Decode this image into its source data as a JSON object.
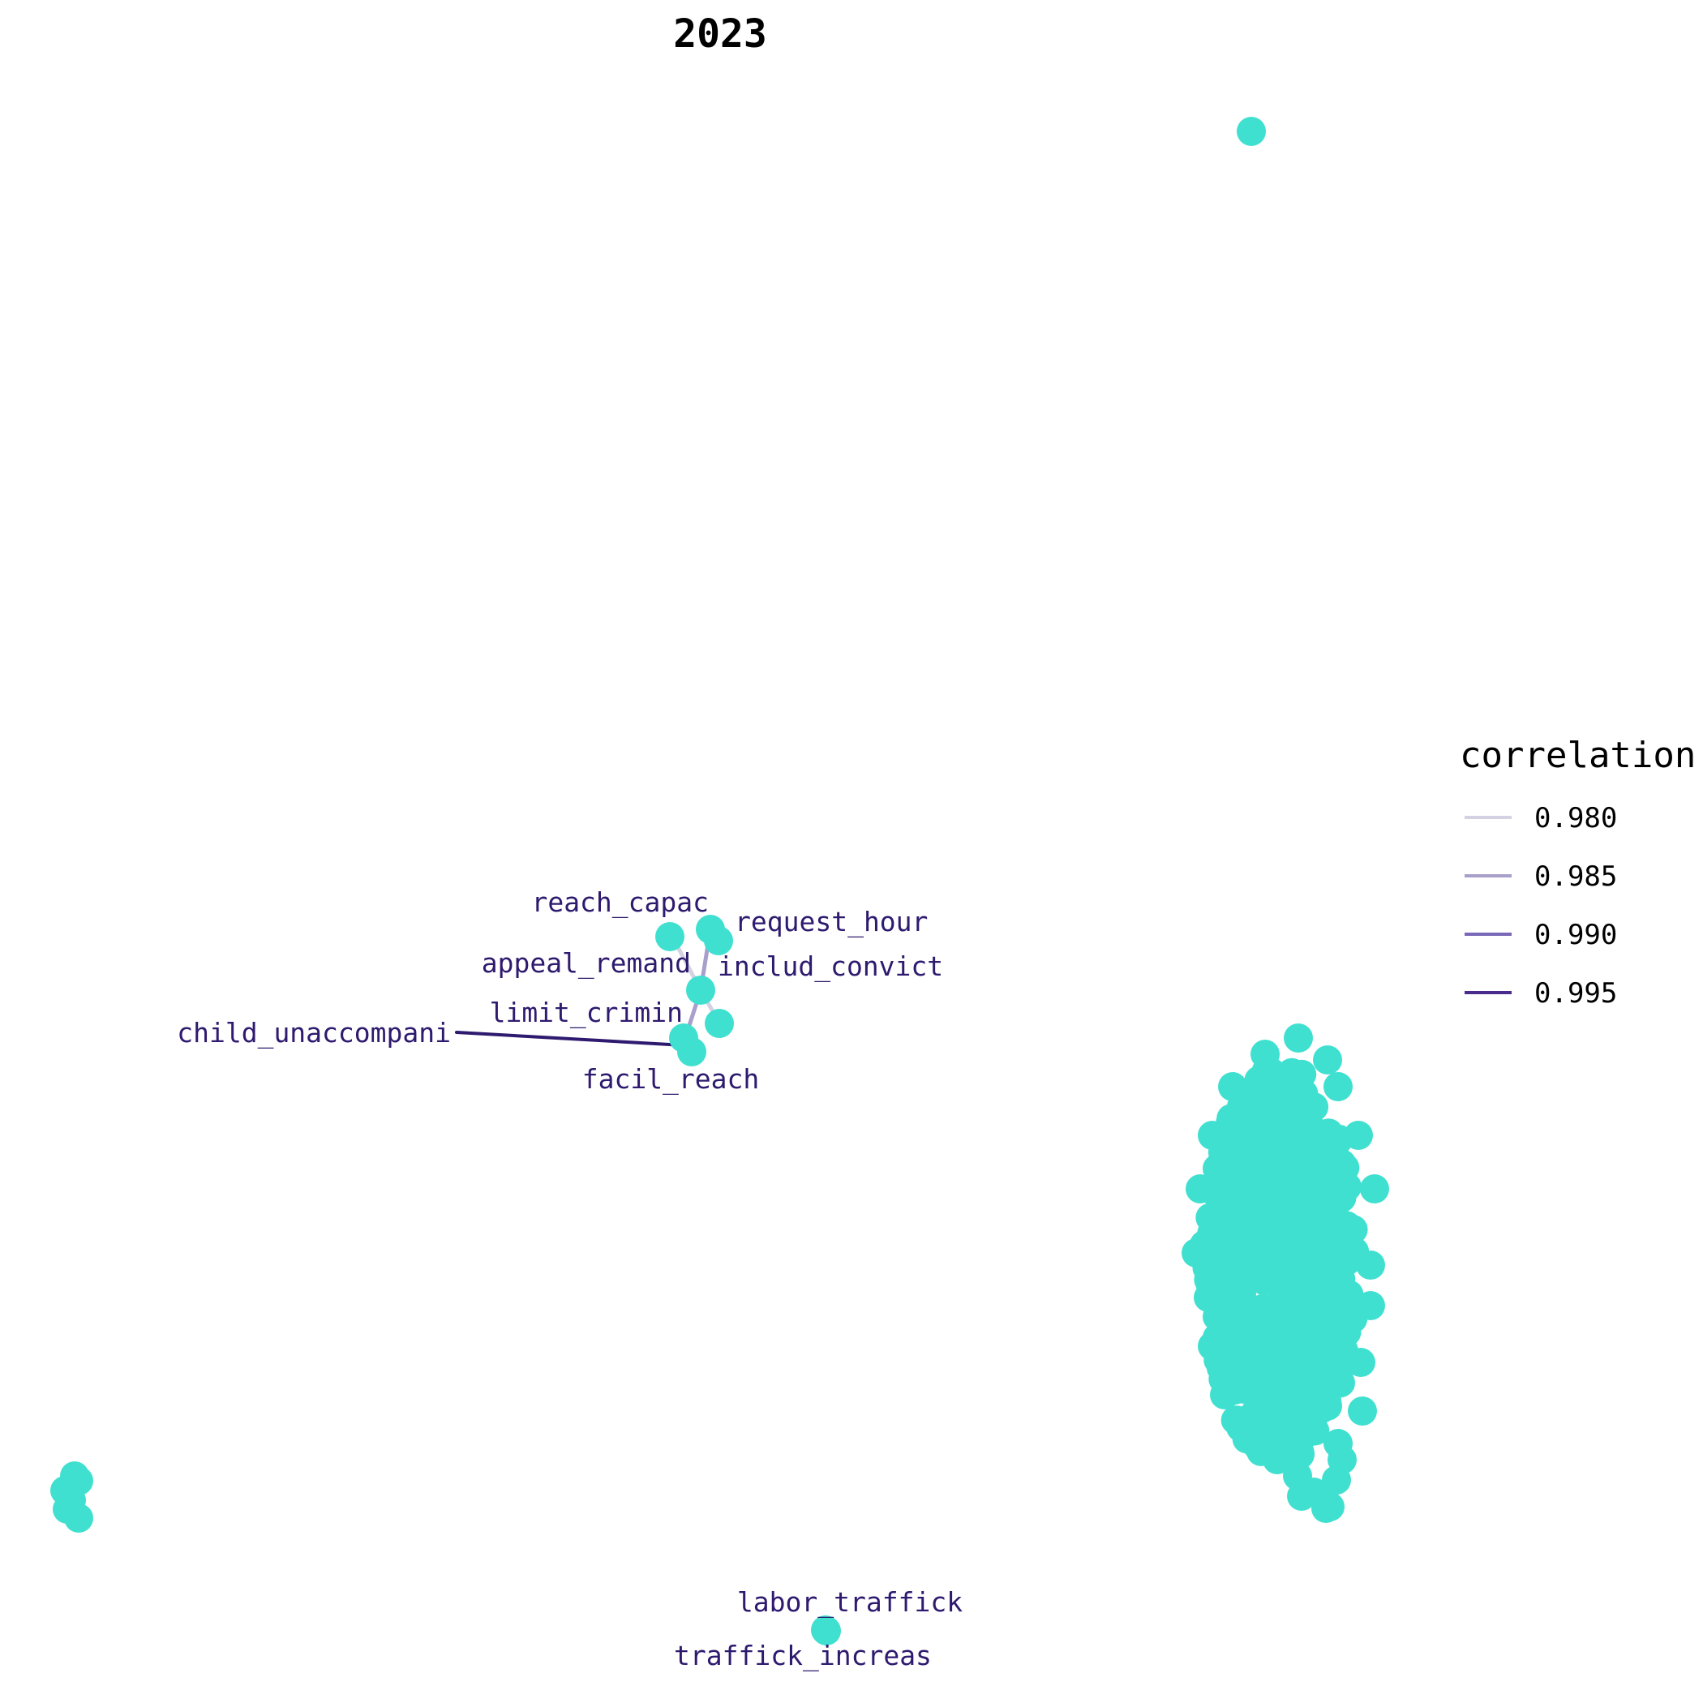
{
  "title": "2023",
  "colors": {
    "node": "#40E0D0",
    "label": "#2E1A6E",
    "background": "#FFFFFF"
  },
  "legend": {
    "title": "correlation",
    "entries": [
      {
        "label": "0.980",
        "value": 0.98,
        "color": "#D4D1E3"
      },
      {
        "label": "0.985",
        "value": 0.985,
        "color": "#A99FCB"
      },
      {
        "label": "0.990",
        "value": 0.99,
        "color": "#7A68B8"
      },
      {
        "label": "0.995",
        "value": 0.995,
        "color": "#4A2C8C"
      }
    ]
  },
  "labeled_nodes": [
    {
      "id": "reach_capac",
      "label": "reach_capac"
    },
    {
      "id": "request_hour",
      "label": "request_hour"
    },
    {
      "id": "appeal_remand",
      "label": "appeal_remand"
    },
    {
      "id": "includ_convict",
      "label": "includ_convict"
    },
    {
      "id": "limit_crimin",
      "label": "limit_crimin"
    },
    {
      "id": "child_unaccompani",
      "label": "child_unaccompani"
    },
    {
      "id": "facil_reach",
      "label": "facil_reach"
    },
    {
      "id": "labor_traffick",
      "label": "labor_traffick"
    },
    {
      "id": "traffick_increas",
      "label": "traffick_increas"
    }
  ],
  "edges": [
    {
      "from": "child_unaccompani",
      "to": "facil_reach",
      "correlation": 0.997
    },
    {
      "from": "limit_crimin",
      "to": "appeal_remand",
      "correlation": 0.985
    },
    {
      "from": "appeal_remand",
      "to": "request_hour",
      "correlation": 0.983
    },
    {
      "from": "appeal_remand",
      "to": "reach_capac",
      "correlation": 0.981
    },
    {
      "from": "appeal_remand",
      "to": "includ_convict",
      "correlation": 0.982
    },
    {
      "from": "limit_crimin",
      "to": "facil_reach",
      "correlation": 0.981
    },
    {
      "from": "labor_traffick",
      "to": "traffick_increas",
      "correlation": 0.98
    }
  ]
}
